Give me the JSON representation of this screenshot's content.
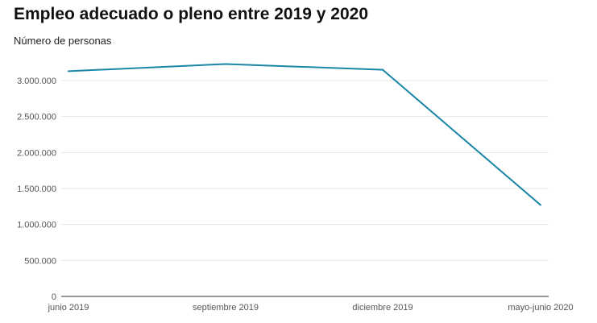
{
  "chart_data": {
    "type": "line",
    "title": "Empleo adecuado o pleno entre 2019 y 2020",
    "subtitle": "Número de personas",
    "xlabel": "",
    "ylabel": "",
    "categories": [
      "junio 2019",
      "septiembre 2019",
      "diciembre 2019",
      "mayo-junio 2020"
    ],
    "series": [
      {
        "values": [
          3130000,
          3230000,
          3150000,
          1270000
        ]
      }
    ],
    "ylim": [
      0,
      3000000
    ],
    "yticks": [
      0,
      500000,
      1000000,
      1500000,
      2000000,
      2500000,
      3000000
    ],
    "ytick_labels": [
      "0",
      "500.000",
      "1.000.000",
      "1.500.000",
      "2.000.000",
      "2.500.000",
      "3.000.000"
    ],
    "grid": true,
    "colors": {
      "line": "#1a86a6",
      "grid": "#e6e6e6",
      "axis": "#333333"
    }
  }
}
